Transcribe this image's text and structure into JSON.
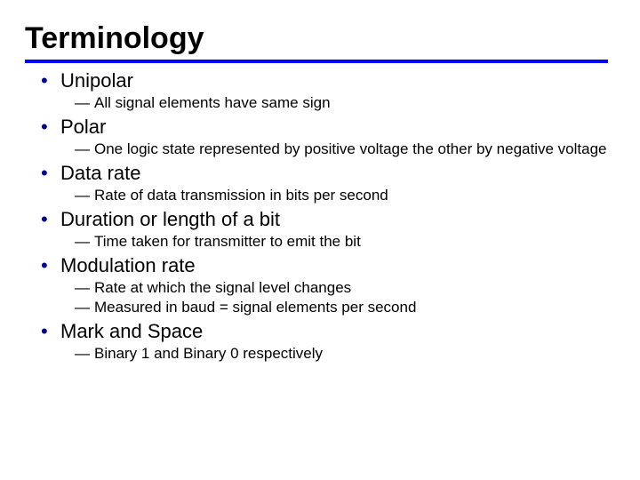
{
  "title": "Terminology",
  "rule_color": "#0000ff",
  "bullet_color": "#000099",
  "text_color": "#000000",
  "background_color": "#ffffff",
  "title_fontsize": 34,
  "term_fontsize": 22,
  "desc_fontsize": 17,
  "items": [
    {
      "term": "Unipolar",
      "desc": [
        "All signal elements have same sign"
      ]
    },
    {
      "term": "Polar",
      "desc": [
        "One logic state represented by positive voltage the other by negative voltage"
      ]
    },
    {
      "term": "Data rate",
      "desc": [
        "Rate of data transmission in bits per second"
      ]
    },
    {
      "term": "Duration or length of a bit",
      "desc": [
        "Time taken for transmitter to emit the bit"
      ]
    },
    {
      "term": "Modulation rate",
      "desc": [
        "Rate at which the signal level changes",
        "Measured in baud = signal elements per second"
      ]
    },
    {
      "term": "Mark and Space",
      "desc": [
        "Binary 1 and Binary 0 respectively"
      ]
    }
  ]
}
